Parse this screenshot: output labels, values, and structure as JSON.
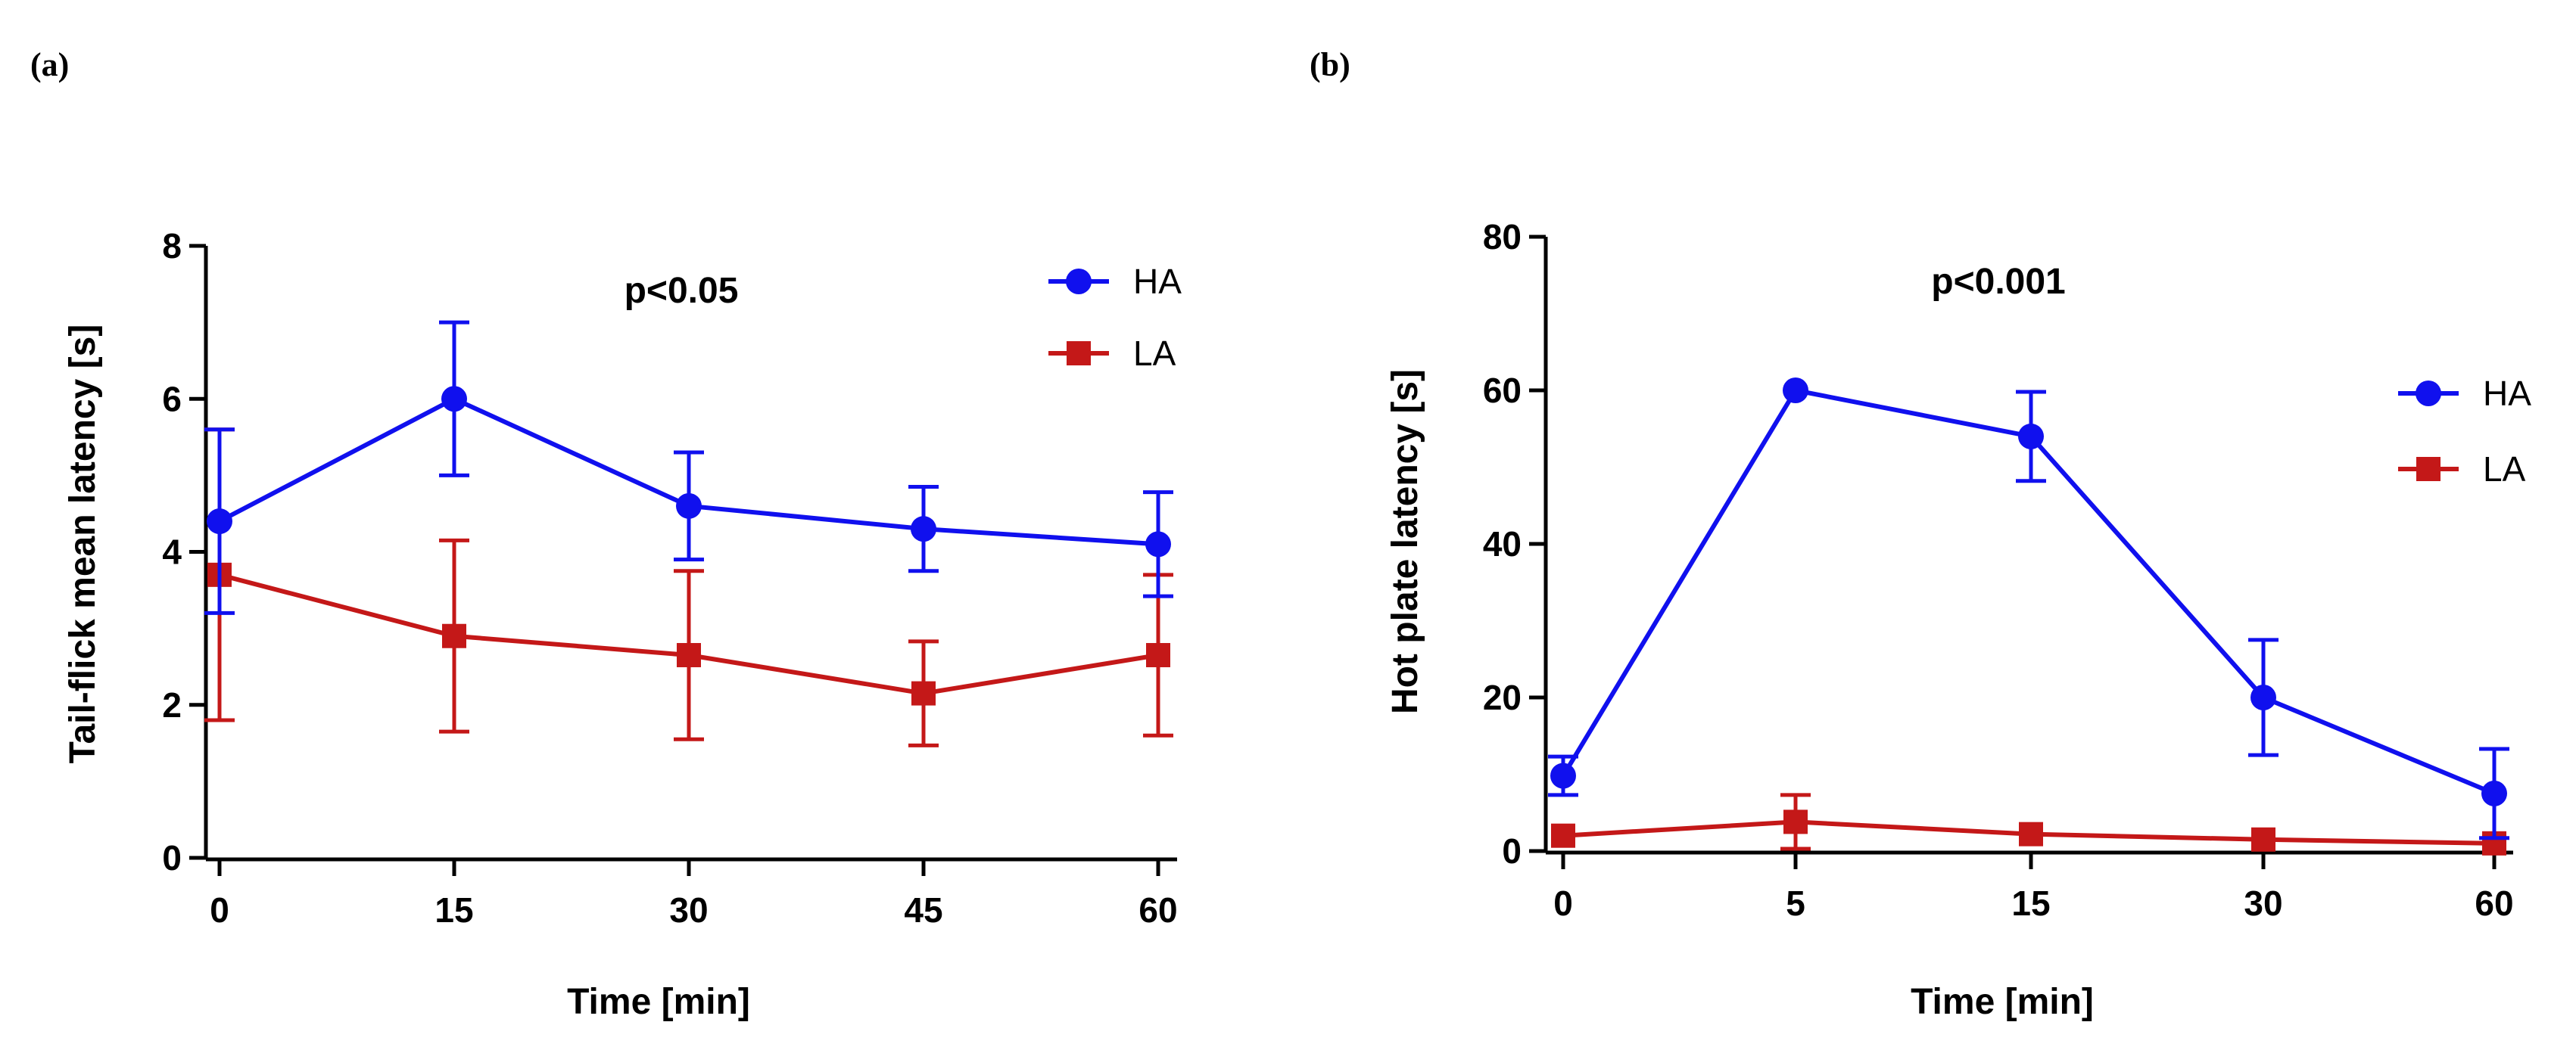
{
  "colors": {
    "HA": "#1010ee",
    "LA": "#c41818"
  },
  "chart_data": [
    {
      "panel_label": "(a)",
      "type": "line",
      "x_ticks": [
        "0",
        "15",
        "30",
        "45",
        "60"
      ],
      "ylabel": "Tail-flick mean latency [s]",
      "xlabel": "Time [min]",
      "ylim": [
        0,
        8
      ],
      "y_ticks": [
        "0",
        "2",
        "4",
        "6",
        "8"
      ],
      "annotation": "p<0.05",
      "legend_position": "top-right",
      "series": [
        {
          "name": "HA",
          "marker": "circle",
          "values": [
            4.4,
            6.0,
            4.6,
            4.3,
            4.1
          ],
          "errors": [
            1.2,
            1.0,
            0.7,
            0.55,
            0.68
          ]
        },
        {
          "name": "LA",
          "marker": "square",
          "values": [
            3.7,
            2.9,
            2.65,
            2.15,
            2.65
          ],
          "errors": [
            1.9,
            1.25,
            1.1,
            0.68,
            1.05
          ]
        }
      ]
    },
    {
      "panel_label": "(b)",
      "type": "line",
      "x_ticks": [
        "0",
        "5",
        "15",
        "30",
        "60"
      ],
      "ylabel": "Hot plate latency [s]",
      "xlabel": "Time [min]",
      "ylim": [
        0,
        80
      ],
      "y_ticks": [
        "0",
        "20",
        "40",
        "60",
        "80"
      ],
      "annotation": "p<0.001",
      "legend_position": "right",
      "series": [
        {
          "name": "HA",
          "marker": "circle",
          "values": [
            9.8,
            60,
            54,
            20,
            7.5
          ],
          "errors": [
            2.5,
            0,
            5.8,
            7.5,
            5.8
          ]
        },
        {
          "name": "LA",
          "marker": "square",
          "values": [
            2.0,
            3.8,
            2.2,
            1.5,
            1.0
          ],
          "errors": [
            0,
            3.5,
            0,
            0,
            0
          ]
        }
      ]
    }
  ]
}
